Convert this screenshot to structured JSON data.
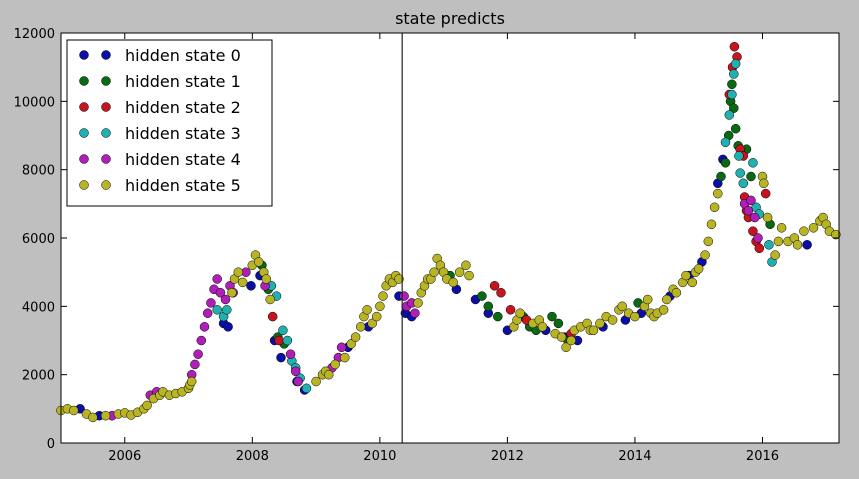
{
  "chart_data": {
    "type": "scatter",
    "title": "state predicts",
    "xlabel": "",
    "ylabel": "",
    "xlim": [
      2005.0,
      2017.2
    ],
    "ylim": [
      0,
      12000
    ],
    "x_ticks": [
      2006,
      2008,
      2010,
      2012,
      2014,
      2016
    ],
    "x_tick_labels": [
      "2006",
      "2008",
      "2010",
      "2012",
      "2014",
      "2016"
    ],
    "y_ticks": [
      0,
      2000,
      4000,
      6000,
      8000,
      10000,
      12000
    ],
    "y_tick_labels": [
      "0",
      "2000",
      "4000",
      "6000",
      "8000",
      "10000",
      "12000"
    ],
    "grid": false,
    "legend_position": "top-left",
    "vertical_line_x": 2010.35,
    "series": [
      {
        "name": "hidden state 0",
        "color": "#0b0fa8",
        "points": [
          [
            2005.3,
            1000
          ],
          [
            2005.6,
            800
          ],
          [
            2007.55,
            3500
          ],
          [
            2007.62,
            3400
          ],
          [
            2007.98,
            4600
          ],
          [
            2008.12,
            4900
          ],
          [
            2008.35,
            3000
          ],
          [
            2008.45,
            2500
          ],
          [
            2008.7,
            1800
          ],
          [
            2008.82,
            1550
          ],
          [
            2009.5,
            2800
          ],
          [
            2009.82,
            3400
          ],
          [
            2010.3,
            4300
          ],
          [
            2010.4,
            3800
          ],
          [
            2010.5,
            3700
          ],
          [
            2011.2,
            4500
          ],
          [
            2011.5,
            4200
          ],
          [
            2011.7,
            3800
          ],
          [
            2012.0,
            3300
          ],
          [
            2012.6,
            3300
          ],
          [
            2012.9,
            3100
          ],
          [
            2013.1,
            3000
          ],
          [
            2013.5,
            3400
          ],
          [
            2013.85,
            3600
          ],
          [
            2014.1,
            3800
          ],
          [
            2014.55,
            4300
          ],
          [
            2014.85,
            4900
          ],
          [
            2015.05,
            5300
          ],
          [
            2015.3,
            7600
          ],
          [
            2015.38,
            8300
          ],
          [
            2016.7,
            5800
          ]
        ]
      },
      {
        "name": "hidden state 1",
        "color": "#0a6a14",
        "points": [
          [
            2008.15,
            5200
          ],
          [
            2008.25,
            4500
          ],
          [
            2008.4,
            3100
          ],
          [
            2008.5,
            2900
          ],
          [
            2011.1,
            4900
          ],
          [
            2011.6,
            4300
          ],
          [
            2011.7,
            4000
          ],
          [
            2011.85,
            3700
          ],
          [
            2012.25,
            3700
          ],
          [
            2012.35,
            3400
          ],
          [
            2012.45,
            3300
          ],
          [
            2012.7,
            3700
          ],
          [
            2012.8,
            3500
          ],
          [
            2012.95,
            3000
          ],
          [
            2014.05,
            4100
          ],
          [
            2015.35,
            7800
          ],
          [
            2015.42,
            8200
          ],
          [
            2015.47,
            9000
          ],
          [
            2015.5,
            10000
          ],
          [
            2015.52,
            10500
          ],
          [
            2015.55,
            9800
          ],
          [
            2015.58,
            9200
          ],
          [
            2015.62,
            8700
          ],
          [
            2015.75,
            8600
          ],
          [
            2015.82,
            7800
          ],
          [
            2016.12,
            6400
          ]
        ]
      },
      {
        "name": "hidden state 2",
        "color": "#c8141e",
        "points": [
          [
            2008.32,
            3700
          ],
          [
            2008.42,
            3000
          ],
          [
            2011.8,
            4600
          ],
          [
            2011.9,
            4400
          ],
          [
            2012.05,
            3900
          ],
          [
            2012.3,
            3600
          ],
          [
            2013.0,
            3200
          ],
          [
            2015.48,
            10200
          ],
          [
            2015.53,
            11000
          ],
          [
            2015.56,
            11600
          ],
          [
            2015.6,
            11300
          ],
          [
            2015.65,
            8600
          ],
          [
            2015.7,
            8400
          ],
          [
            2015.72,
            7200
          ],
          [
            2015.75,
            6800
          ],
          [
            2015.78,
            6600
          ],
          [
            2015.85,
            6200
          ],
          [
            2015.9,
            5900
          ],
          [
            2015.95,
            5700
          ],
          [
            2016.05,
            7300
          ]
        ]
      },
      {
        "name": "hidden state 3",
        "color": "#20b0b0",
        "points": [
          [
            2007.45,
            3900
          ],
          [
            2007.55,
            3700
          ],
          [
            2007.6,
            3900
          ],
          [
            2008.3,
            4600
          ],
          [
            2008.38,
            4300
          ],
          [
            2008.48,
            3300
          ],
          [
            2008.55,
            3000
          ],
          [
            2008.62,
            2400
          ],
          [
            2008.68,
            2200
          ],
          [
            2008.75,
            1900
          ],
          [
            2008.85,
            1600
          ],
          [
            2015.42,
            8800
          ],
          [
            2015.48,
            9600
          ],
          [
            2015.52,
            10200
          ],
          [
            2015.55,
            10800
          ],
          [
            2015.58,
            11100
          ],
          [
            2015.63,
            8400
          ],
          [
            2015.65,
            7900
          ],
          [
            2015.7,
            7600
          ],
          [
            2015.85,
            8200
          ],
          [
            2015.9,
            6900
          ],
          [
            2015.95,
            6700
          ],
          [
            2016.1,
            5800
          ],
          [
            2016.15,
            5300
          ]
        ]
      },
      {
        "name": "hidden state 4",
        "color": "#b01eb8",
        "points": [
          [
            2005.8,
            800
          ],
          [
            2006.4,
            1400
          ],
          [
            2006.5,
            1500
          ],
          [
            2007.05,
            2000
          ],
          [
            2007.1,
            2300
          ],
          [
            2007.15,
            2600
          ],
          [
            2007.2,
            3000
          ],
          [
            2007.25,
            3400
          ],
          [
            2007.3,
            3800
          ],
          [
            2007.35,
            4100
          ],
          [
            2007.4,
            4500
          ],
          [
            2007.45,
            4800
          ],
          [
            2007.5,
            4400
          ],
          [
            2007.58,
            4200
          ],
          [
            2007.65,
            4600
          ],
          [
            2007.7,
            4400
          ],
          [
            2007.9,
            5000
          ],
          [
            2008.2,
            4600
          ],
          [
            2008.6,
            2600
          ],
          [
            2008.68,
            2100
          ],
          [
            2008.72,
            1800
          ],
          [
            2009.25,
            2200
          ],
          [
            2009.35,
            2500
          ],
          [
            2009.4,
            2800
          ],
          [
            2010.38,
            4300
          ],
          [
            2010.42,
            4000
          ],
          [
            2010.5,
            4100
          ],
          [
            2010.55,
            3800
          ],
          [
            2015.72,
            7000
          ],
          [
            2015.78,
            6800
          ],
          [
            2015.82,
            7100
          ],
          [
            2015.88,
            6600
          ],
          [
            2015.93,
            6000
          ]
        ]
      },
      {
        "name": "hidden state 5",
        "color": "#b8b424",
        "points": [
          [
            2005.0,
            950
          ],
          [
            2005.1,
            1000
          ],
          [
            2005.2,
            950
          ],
          [
            2005.4,
            850
          ],
          [
            2005.5,
            750
          ],
          [
            2005.7,
            800
          ],
          [
            2005.9,
            850
          ],
          [
            2006.0,
            880
          ],
          [
            2006.1,
            820
          ],
          [
            2006.2,
            900
          ],
          [
            2006.3,
            1000
          ],
          [
            2006.35,
            1100
          ],
          [
            2006.45,
            1300
          ],
          [
            2006.55,
            1400
          ],
          [
            2006.6,
            1500
          ],
          [
            2006.7,
            1400
          ],
          [
            2006.8,
            1450
          ],
          [
            2006.9,
            1500
          ],
          [
            2007.0,
            1600
          ],
          [
            2007.02,
            1700
          ],
          [
            2007.05,
            1800
          ],
          [
            2007.68,
            4400
          ],
          [
            2007.72,
            4800
          ],
          [
            2007.78,
            5000
          ],
          [
            2007.85,
            4700
          ],
          [
            2008.0,
            5200
          ],
          [
            2008.05,
            5500
          ],
          [
            2008.1,
            5300
          ],
          [
            2008.18,
            5000
          ],
          [
            2008.22,
            4800
          ],
          [
            2008.28,
            4200
          ],
          [
            2009.0,
            1800
          ],
          [
            2009.1,
            2000
          ],
          [
            2009.15,
            2100
          ],
          [
            2009.2,
            2000
          ],
          [
            2009.3,
            2300
          ],
          [
            2009.45,
            2500
          ],
          [
            2009.55,
            2900
          ],
          [
            2009.62,
            3100
          ],
          [
            2009.7,
            3400
          ],
          [
            2009.75,
            3700
          ],
          [
            2009.8,
            3900
          ],
          [
            2009.88,
            3500
          ],
          [
            2009.95,
            3700
          ],
          [
            2010.0,
            4000
          ],
          [
            2010.05,
            4300
          ],
          [
            2010.1,
            4600
          ],
          [
            2010.15,
            4800
          ],
          [
            2010.2,
            4700
          ],
          [
            2010.25,
            4900
          ],
          [
            2010.3,
            4800
          ],
          [
            2010.6,
            4100
          ],
          [
            2010.65,
            4400
          ],
          [
            2010.7,
            4600
          ],
          [
            2010.75,
            4800
          ],
          [
            2010.8,
            4800
          ],
          [
            2010.85,
            5000
          ],
          [
            2010.9,
            5400
          ],
          [
            2010.95,
            5200
          ],
          [
            2011.0,
            5000
          ],
          [
            2011.05,
            4800
          ],
          [
            2011.15,
            4700
          ],
          [
            2011.25,
            5000
          ],
          [
            2011.35,
            5200
          ],
          [
            2011.4,
            4900
          ],
          [
            2012.1,
            3400
          ],
          [
            2012.15,
            3600
          ],
          [
            2012.2,
            3800
          ],
          [
            2012.4,
            3500
          ],
          [
            2012.5,
            3600
          ],
          [
            2012.55,
            3400
          ],
          [
            2012.75,
            3200
          ],
          [
            2012.85,
            3100
          ],
          [
            2012.92,
            2800
          ],
          [
            2013.0,
            3000
          ],
          [
            2013.05,
            3300
          ],
          [
            2013.15,
            3400
          ],
          [
            2013.25,
            3500
          ],
          [
            2013.3,
            3300
          ],
          [
            2013.35,
            3300
          ],
          [
            2013.45,
            3500
          ],
          [
            2013.55,
            3700
          ],
          [
            2013.65,
            3600
          ],
          [
            2013.75,
            3900
          ],
          [
            2013.8,
            4000
          ],
          [
            2013.9,
            3800
          ],
          [
            2014.0,
            3700
          ],
          [
            2014.15,
            4000
          ],
          [
            2014.2,
            4200
          ],
          [
            2014.25,
            3800
          ],
          [
            2014.3,
            3700
          ],
          [
            2014.35,
            3800
          ],
          [
            2014.45,
            3900
          ],
          [
            2014.5,
            4200
          ],
          [
            2014.6,
            4500
          ],
          [
            2014.65,
            4400
          ],
          [
            2014.75,
            4700
          ],
          [
            2014.8,
            4900
          ],
          [
            2014.9,
            4700
          ],
          [
            2014.95,
            5000
          ],
          [
            2015.0,
            5100
          ],
          [
            2015.1,
            5500
          ],
          [
            2015.15,
            5900
          ],
          [
            2015.2,
            6400
          ],
          [
            2015.25,
            6900
          ],
          [
            2015.3,
            7300
          ],
          [
            2016.0,
            7800
          ],
          [
            2016.02,
            7600
          ],
          [
            2016.08,
            6600
          ],
          [
            2016.2,
            5500
          ],
          [
            2016.25,
            5900
          ],
          [
            2016.3,
            6300
          ],
          [
            2016.4,
            5900
          ],
          [
            2016.5,
            6000
          ],
          [
            2016.55,
            5800
          ],
          [
            2016.65,
            6200
          ],
          [
            2016.8,
            6300
          ],
          [
            2016.9,
            6500
          ],
          [
            2016.95,
            6600
          ],
          [
            2017.0,
            6400
          ],
          [
            2017.05,
            6200
          ],
          [
            2017.15,
            6100
          ]
        ]
      }
    ]
  }
}
